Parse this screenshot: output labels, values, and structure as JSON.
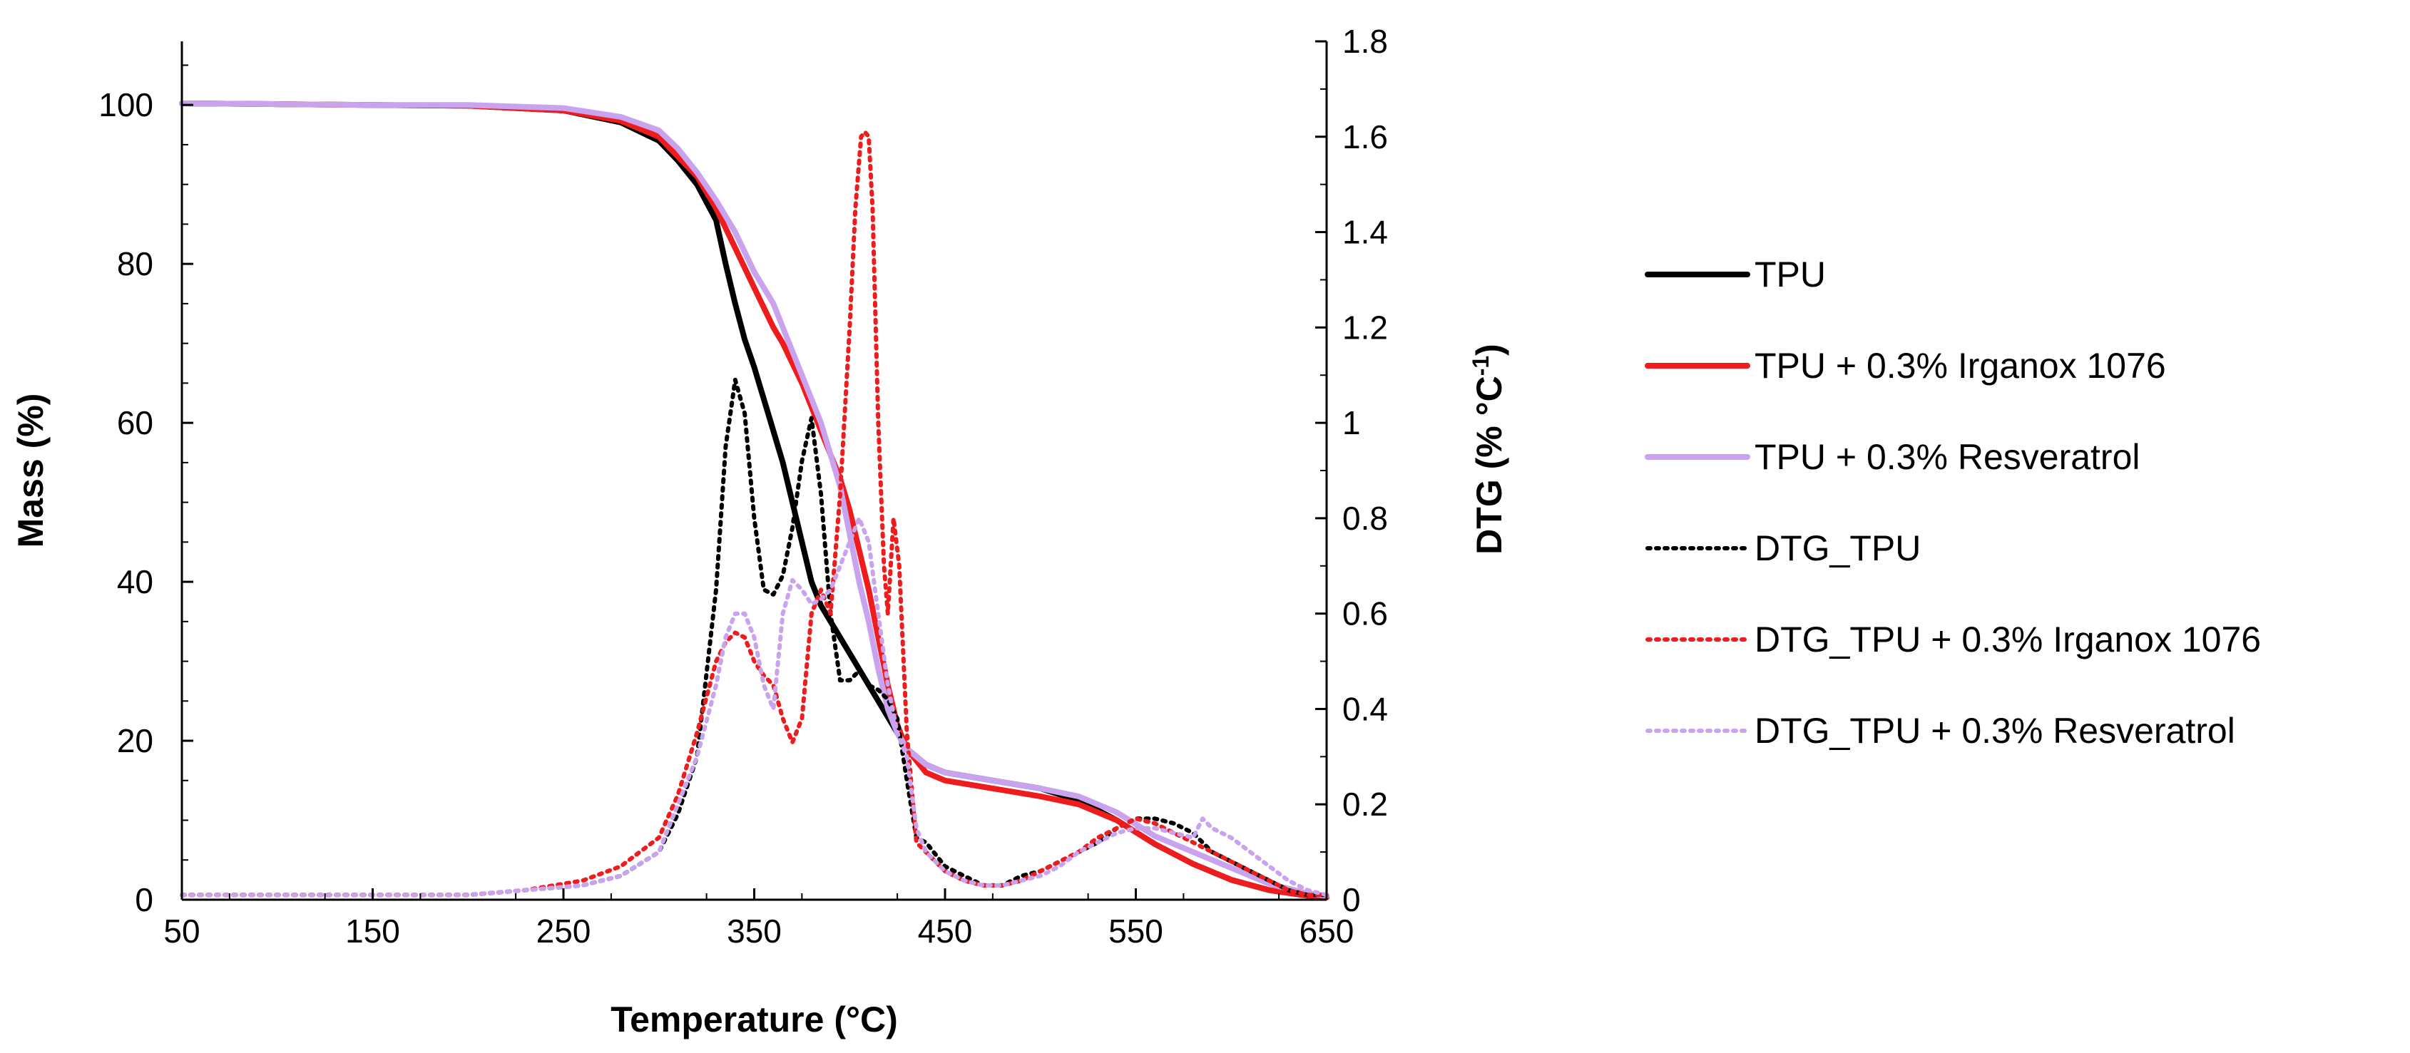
{
  "chart_data": {
    "type": "line",
    "title": "",
    "xlabel": "Temperature (°C)",
    "ylabel_left": "Mass (%)",
    "ylabel_right": "DTG (% °C",
    "ylabel_right_sup": "-1",
    "ylabel_right_close": ")",
    "xlim": [
      50,
      650
    ],
    "ylim_left": [
      0,
      108
    ],
    "ylim_right": [
      0,
      1.8
    ],
    "x_ticks": [
      50,
      150,
      250,
      350,
      450,
      550,
      650
    ],
    "y_left_ticks": [
      0,
      20,
      40,
      60,
      80,
      100
    ],
    "y_right_ticks": [
      0,
      0.2,
      0.4,
      0.6,
      0.8,
      1,
      1.2,
      1.4,
      1.6,
      1.8
    ],
    "legend_position": "right",
    "series": [
      {
        "name": "TPU",
        "axis": "left",
        "style": "solid",
        "color": "#000000",
        "x": [
          50,
          100,
          150,
          200,
          250,
          280,
          300,
          310,
          320,
          330,
          335,
          340,
          345,
          350,
          355,
          360,
          365,
          370,
          375,
          380,
          385,
          390,
          400,
          410,
          420,
          430,
          440,
          450,
          475,
          500,
          520,
          540,
          560,
          580,
          600,
          620,
          640,
          650
        ],
        "y": [
          100.2,
          100.1,
          100,
          99.9,
          99.3,
          97.8,
          95.5,
          93,
          90,
          85.5,
          80,
          75,
          70.5,
          67,
          63,
          59,
          55,
          50,
          45,
          40,
          37,
          35,
          31,
          27,
          23,
          19,
          17,
          16,
          15,
          14,
          12.5,
          10,
          7,
          4.5,
          2.5,
          1.2,
          0.5,
          0.3
        ]
      },
      {
        "name": "TPU + 0.3% Irganox 1076",
        "axis": "left",
        "style": "solid",
        "color": "#ee1c1c",
        "x": [
          50,
          100,
          150,
          200,
          250,
          280,
          300,
          310,
          320,
          330,
          340,
          345,
          350,
          355,
          360,
          365,
          370,
          375,
          380,
          385,
          390,
          395,
          400,
          405,
          410,
          415,
          420,
          425,
          430,
          440,
          450,
          475,
          500,
          520,
          540,
          560,
          580,
          600,
          620,
          640,
          650
        ],
        "y": [
          100.2,
          100.1,
          100,
          99.9,
          99.3,
          98,
          96,
          93.5,
          91,
          87,
          82,
          79.5,
          77,
          74.5,
          72,
          70,
          67.5,
          65,
          62,
          59,
          56,
          53,
          49,
          44,
          39,
          33,
          27,
          22,
          19,
          16,
          15,
          14,
          13,
          12,
          10,
          7,
          4.5,
          2.5,
          1.2,
          0.5,
          0.3
        ]
      },
      {
        "name": "TPU + 0.3% Resveratrol",
        "axis": "left",
        "style": "solid",
        "color": "#c9a3ee",
        "x": [
          50,
          100,
          150,
          200,
          250,
          280,
          300,
          310,
          320,
          330,
          340,
          345,
          350,
          355,
          360,
          365,
          370,
          375,
          380,
          385,
          390,
          395,
          400,
          405,
          410,
          415,
          420,
          425,
          430,
          440,
          450,
          475,
          500,
          520,
          540,
          560,
          580,
          600,
          620,
          640,
          650
        ],
        "y": [
          100.2,
          100.1,
          100,
          100,
          99.6,
          98.5,
          96.8,
          94.5,
          91.5,
          88,
          84,
          81.5,
          79,
          77,
          75,
          72,
          69,
          66,
          63,
          60,
          56,
          52,
          46,
          40,
          35,
          29,
          24,
          21,
          19,
          17,
          16,
          15,
          14,
          13,
          11,
          8,
          6,
          4,
          2,
          0.8,
          0.5
        ]
      },
      {
        "name": "DTG_TPU",
        "axis": "right",
        "style": "dotted",
        "color": "#000000",
        "x": [
          50,
          100,
          150,
          200,
          230,
          260,
          280,
          300,
          310,
          320,
          330,
          335,
          340,
          345,
          350,
          355,
          360,
          365,
          370,
          375,
          380,
          385,
          390,
          395,
          400,
          405,
          410,
          415,
          420,
          425,
          430,
          435,
          440,
          450,
          460,
          470,
          480,
          490,
          500,
          510,
          520,
          530,
          540,
          550,
          560,
          570,
          580,
          590,
          600,
          610,
          620,
          630,
          640,
          650
        ],
        "y": [
          0.01,
          0.01,
          0.01,
          0.01,
          0.02,
          0.03,
          0.05,
          0.1,
          0.18,
          0.3,
          0.65,
          0.95,
          1.09,
          1.02,
          0.8,
          0.65,
          0.64,
          0.68,
          0.78,
          0.92,
          1.01,
          0.85,
          0.6,
          0.46,
          0.46,
          0.48,
          0.45,
          0.44,
          0.42,
          0.38,
          0.25,
          0.13,
          0.12,
          0.07,
          0.05,
          0.03,
          0.03,
          0.05,
          0.06,
          0.08,
          0.1,
          0.12,
          0.15,
          0.17,
          0.17,
          0.16,
          0.14,
          0.1,
          0.08,
          0.06,
          0.04,
          0.02,
          0.01,
          0.01
        ]
      },
      {
        "name": "DTG_TPU + 0.3% Irganox 1076",
        "axis": "right",
        "style": "dotted",
        "color": "#ee1c1c",
        "x": [
          50,
          100,
          150,
          200,
          230,
          260,
          280,
          300,
          310,
          320,
          330,
          335,
          340,
          345,
          350,
          355,
          360,
          365,
          370,
          375,
          380,
          385,
          390,
          395,
          400,
          403,
          406,
          408,
          410,
          412,
          415,
          418,
          420,
          423,
          426,
          430,
          435,
          440,
          450,
          460,
          470,
          480,
          490,
          500,
          510,
          520,
          530,
          540,
          550,
          560,
          570,
          580,
          590,
          600,
          610,
          620,
          630,
          640,
          650
        ],
        "y": [
          0.01,
          0.01,
          0.01,
          0.01,
          0.02,
          0.04,
          0.07,
          0.13,
          0.22,
          0.35,
          0.5,
          0.54,
          0.56,
          0.55,
          0.5,
          0.47,
          0.45,
          0.38,
          0.33,
          0.38,
          0.6,
          0.65,
          0.6,
          0.85,
          1.2,
          1.45,
          1.6,
          1.61,
          1.6,
          1.45,
          1.0,
          0.7,
          0.6,
          0.8,
          0.7,
          0.35,
          0.12,
          0.1,
          0.06,
          0.04,
          0.03,
          0.03,
          0.04,
          0.06,
          0.08,
          0.1,
          0.13,
          0.15,
          0.17,
          0.16,
          0.14,
          0.12,
          0.1,
          0.08,
          0.06,
          0.04,
          0.02,
          0.01,
          0.01
        ]
      },
      {
        "name": "DTG_TPU + 0.3% Resveratrol",
        "axis": "right",
        "style": "dotted",
        "color": "#c9a3ee",
        "x": [
          50,
          100,
          150,
          200,
          230,
          260,
          280,
          300,
          310,
          320,
          330,
          335,
          340,
          345,
          350,
          355,
          360,
          365,
          370,
          375,
          380,
          385,
          390,
          395,
          400,
          405,
          410,
          415,
          420,
          425,
          430,
          435,
          440,
          450,
          460,
          470,
          480,
          490,
          500,
          510,
          520,
          530,
          540,
          550,
          560,
          570,
          580,
          585,
          590,
          600,
          610,
          620,
          630,
          640,
          650
        ],
        "y": [
          0.01,
          0.01,
          0.01,
          0.01,
          0.02,
          0.03,
          0.05,
          0.1,
          0.2,
          0.3,
          0.45,
          0.55,
          0.6,
          0.6,
          0.55,
          0.45,
          0.4,
          0.6,
          0.67,
          0.65,
          0.62,
          0.63,
          0.65,
          0.7,
          0.75,
          0.8,
          0.75,
          0.6,
          0.45,
          0.35,
          0.3,
          0.15,
          0.1,
          0.06,
          0.04,
          0.03,
          0.03,
          0.04,
          0.05,
          0.07,
          0.1,
          0.12,
          0.14,
          0.15,
          0.15,
          0.14,
          0.13,
          0.17,
          0.15,
          0.13,
          0.1,
          0.07,
          0.04,
          0.02,
          0.01
        ]
      }
    ]
  }
}
